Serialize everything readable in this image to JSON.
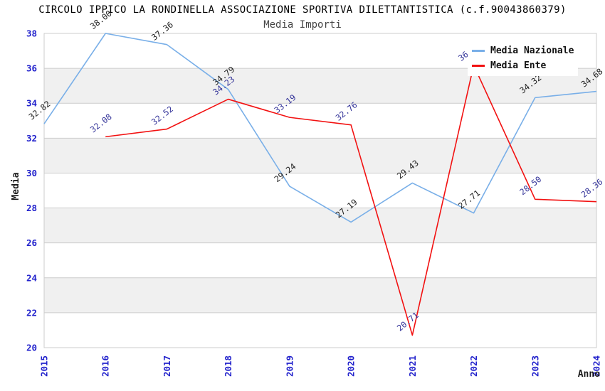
{
  "header": {
    "title": "CIRCOLO IPPICO LA RONDINELLA ASSOCIAZIONE SPORTIVA DILETTANTISTICA (c.f.90043860379)",
    "subtitle": "Media Importi"
  },
  "chart_data": {
    "type": "line",
    "title": "CIRCOLO IPPICO LA RONDINELLA ASSOCIAZIONE SPORTIVA DILETTANTISTICA (c.f.90043860379)",
    "subtitle": "Media Importi",
    "categories": [
      "2015",
      "2016",
      "2017",
      "2018",
      "2019",
      "2020",
      "2021",
      "2022",
      "2023",
      "2024"
    ],
    "xlabel": "Anno",
    "ylabel": "Media",
    "ylim": [
      20,
      38
    ],
    "ytick_step": 2,
    "grid": "horizontal",
    "band_colors": [
      "#ffffff",
      "#f0f0f0"
    ],
    "gridline_color": "#cccccc",
    "axis_tick_color": "#2222cc",
    "legend_position": "top-right",
    "series": [
      {
        "name": "Media Nazionale",
        "color": "#79afe8",
        "label_color": "#222222",
        "values": [
          32.82,
          38.0,
          37.36,
          34.79,
          29.24,
          27.19,
          29.43,
          27.71,
          34.32,
          34.68
        ]
      },
      {
        "name": "Media Ente",
        "color": "#f21111",
        "label_color": "#333399",
        "values": [
          null,
          32.08,
          32.52,
          34.23,
          33.19,
          32.76,
          20.71,
          36.18,
          28.5,
          28.36
        ]
      }
    ]
  }
}
